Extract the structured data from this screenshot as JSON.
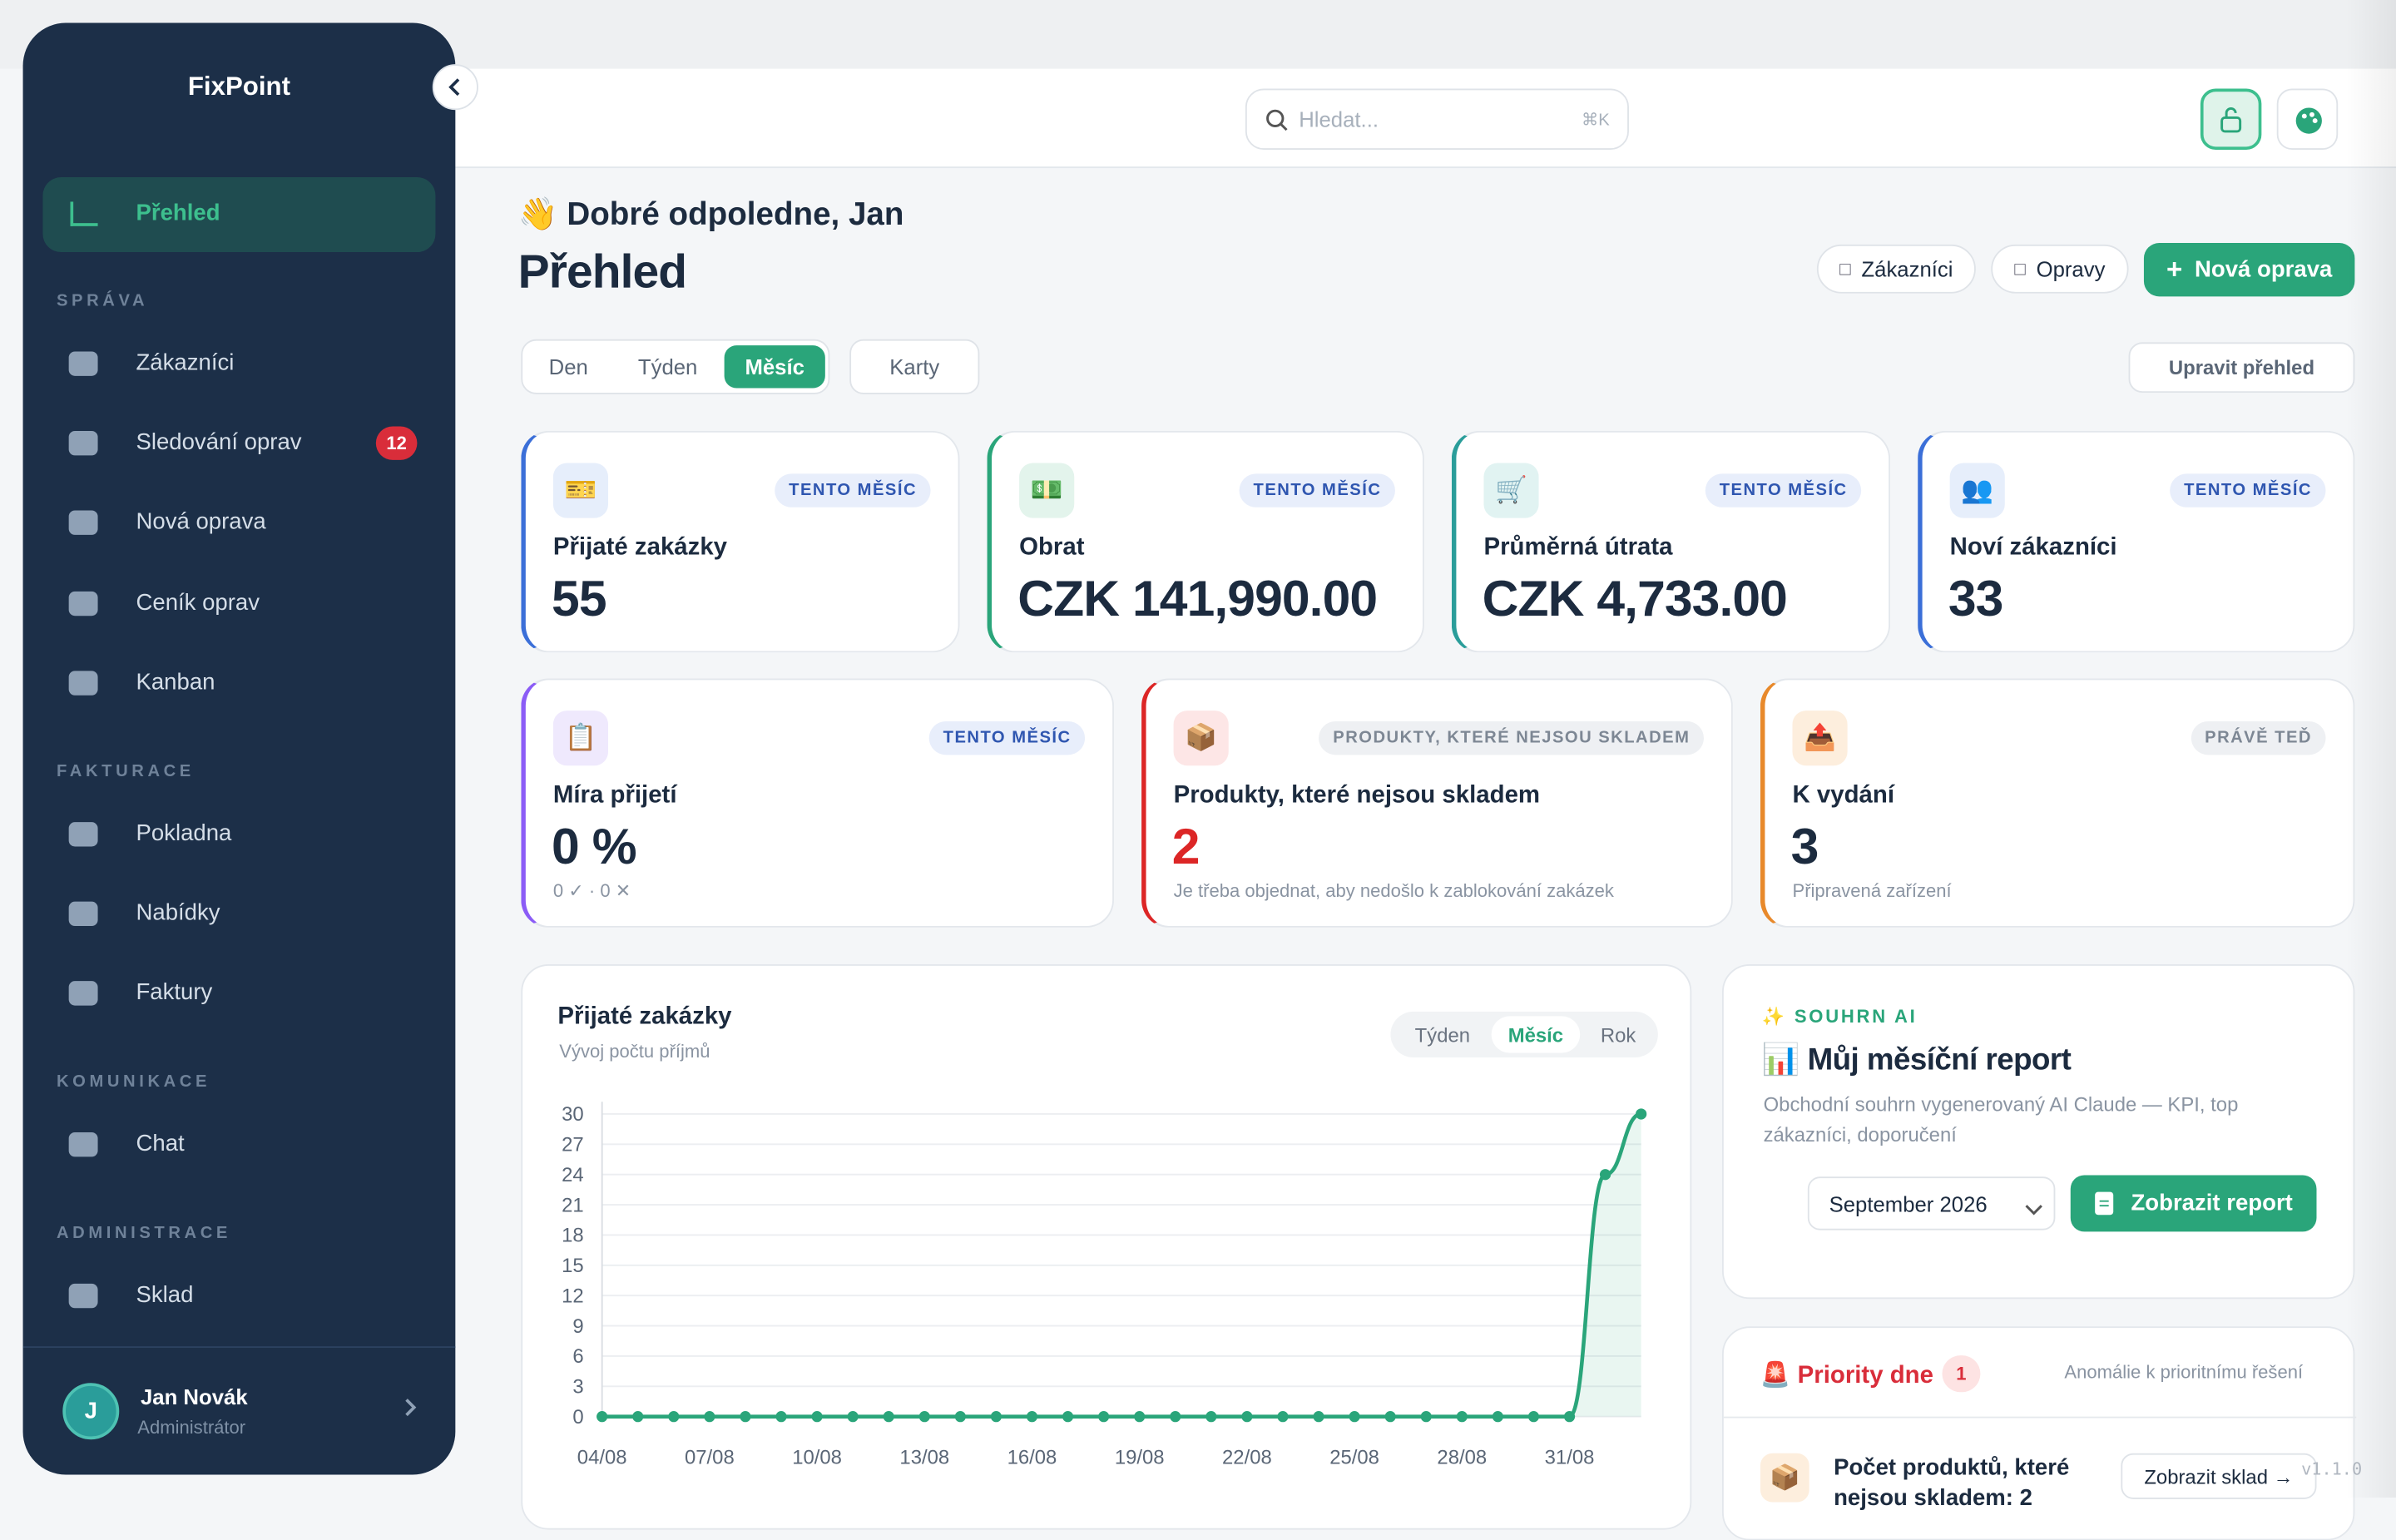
{
  "sidebar": {
    "brand": "FixPoint",
    "active": "Přehled",
    "sections": [
      {
        "title": "SPRÁVA",
        "items": [
          {
            "label": "Zákazníci"
          },
          {
            "label": "Sledování oprav",
            "badge": 12
          },
          {
            "label": "Nová oprava"
          },
          {
            "label": "Ceník oprav"
          },
          {
            "label": "Kanban"
          }
        ]
      },
      {
        "title": "FAKTURACE",
        "items": [
          {
            "label": "Pokladna"
          },
          {
            "label": "Nabídky"
          },
          {
            "label": "Faktury"
          }
        ]
      },
      {
        "title": "KOMUNIKACE",
        "items": [
          {
            "label": "Chat"
          }
        ]
      },
      {
        "title": "ADMINISTRACE",
        "items": [
          {
            "label": "Sklad"
          }
        ]
      }
    ],
    "user": {
      "initial": "J",
      "name": "Jan Novák",
      "role": "Administrátor"
    }
  },
  "topbar": {
    "search_placeholder": "Hledat...",
    "shortcut": "⌘K"
  },
  "header": {
    "greeting": "👋 Dobré odpoledne, Jan",
    "title": "Přehled",
    "buttons": [
      "Zákazníci",
      "Opravy",
      "Nová oprava"
    ]
  },
  "period_tabs": [
    "Den",
    "Týden",
    "Měsíc"
  ],
  "active_period": "Měsíc",
  "view_button": "Karty",
  "edit_button": "Upravit přehled",
  "cards": [
    {
      "icon": "🎫",
      "badge": "TENTO MĚSÍC",
      "label": "Přijaté zakázky",
      "value": 55
    },
    {
      "icon": "💵",
      "badge": "TENTO MĚSÍC",
      "label": "Obrat",
      "value": "CZK 141,990.00"
    },
    {
      "icon": "🛒",
      "badge": "TENTO MĚSÍC",
      "label": "Průměrná útrata",
      "value": "CZK 4,733.00"
    },
    {
      "icon": "👥",
      "badge": "TENTO MĚSÍC",
      "label": "Noví zákazníci",
      "value": 33
    },
    {
      "icon": "📋",
      "badge": "TENTO MĚSÍC",
      "label": "Míra přijetí",
      "value": "0 %",
      "note": "0 ✓ · 0 ✕"
    },
    {
      "icon": "📦",
      "badge": "PRODUKTY, KTERÉ NEJSOU SKLADEM",
      "label": "Produkty, které nejsou skladem",
      "value": 2,
      "note": "Je třeba objednat, aby nedošlo k zablokování zakázek"
    },
    {
      "icon": "📤",
      "badge": "PRÁVĚ TEĎ",
      "label": "K vydání",
      "value": 3,
      "note": "Připravená zařízení"
    }
  ],
  "chart_data": {
    "type": "line",
    "title": "Přijaté zakázky",
    "subtitle": "Vývoj počtu příjmů",
    "period_tabs": [
      "Týden",
      "Měsíc",
      "Rok"
    ],
    "active_period": "Měsíc",
    "categories": [
      "04/08",
      null,
      null,
      "07/08",
      null,
      null,
      "10/08",
      null,
      null,
      "13/08",
      null,
      null,
      "16/08",
      null,
      null,
      "19/08",
      null,
      null,
      "22/08",
      null,
      null,
      "25/08",
      null,
      null,
      "28/08",
      null,
      null,
      "31/08",
      null,
      null
    ],
    "series": [
      {
        "name": "Přijaté zakázky",
        "color": "#2aa57a",
        "values": [
          0,
          0,
          0,
          0,
          0,
          0,
          0,
          0,
          0,
          0,
          0,
          0,
          0,
          0,
          0,
          0,
          0,
          0,
          0,
          0,
          0,
          0,
          0,
          0,
          0,
          0,
          0,
          0,
          24,
          30
        ]
      }
    ],
    "ylim": [
      0,
      30
    ],
    "yticks": [
      0,
      3,
      6,
      9,
      12,
      15,
      18,
      21,
      24,
      27,
      30
    ],
    "grid": true
  },
  "ai_report": {
    "label": "✨ SOUHRN AI",
    "title": "📊 Můj měsíční report",
    "description": "Obchodní souhrn vygenerovaný AI Claude — KPI, top zákazníci, doporučení",
    "month": "September 2026",
    "button": "Zobrazit report"
  },
  "priorities": {
    "title": "🚨 Priority dne",
    "count": 1,
    "subtitle": "Anomálie k prioritnímu řešení",
    "item": {
      "icon": "📦",
      "text": "Počet produktů, které nejsou skladem: 2",
      "button": "Zobrazit sklad →"
    }
  },
  "version": "v1.1.0"
}
